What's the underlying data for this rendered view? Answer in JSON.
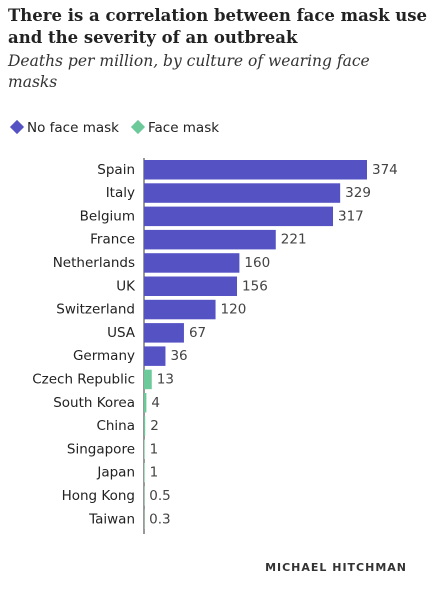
{
  "chart_data": {
    "type": "bar",
    "orientation": "horizontal",
    "title_lines": [
      "There is a correlation between face mask use",
      "and the severity of an outbreak"
    ],
    "subtitle_lines": [
      "Deaths per million, by culture of wearing face",
      "masks"
    ],
    "categories": [
      "Spain",
      "Italy",
      "Belgium",
      "France",
      "Netherlands",
      "UK",
      "Switzerland",
      "USA",
      "Germany",
      "Czech Republic",
      "South Korea",
      "China",
      "Singapore",
      "Japan",
      "Hong Kong",
      "Taiwan"
    ],
    "series": [
      {
        "name": "No face mask",
        "color": "#5553c4",
        "values": [
          374,
          329,
          317,
          221,
          160,
          156,
          120,
          67,
          36,
          null,
          null,
          null,
          null,
          null,
          null,
          null
        ]
      },
      {
        "name": "Face mask",
        "color": "#6cc99a",
        "values": [
          null,
          null,
          null,
          null,
          null,
          null,
          null,
          null,
          null,
          13,
          4,
          2,
          1,
          1,
          0.5,
          0.3
        ]
      }
    ],
    "credit": "MICHAEL HITCHMAN"
  }
}
